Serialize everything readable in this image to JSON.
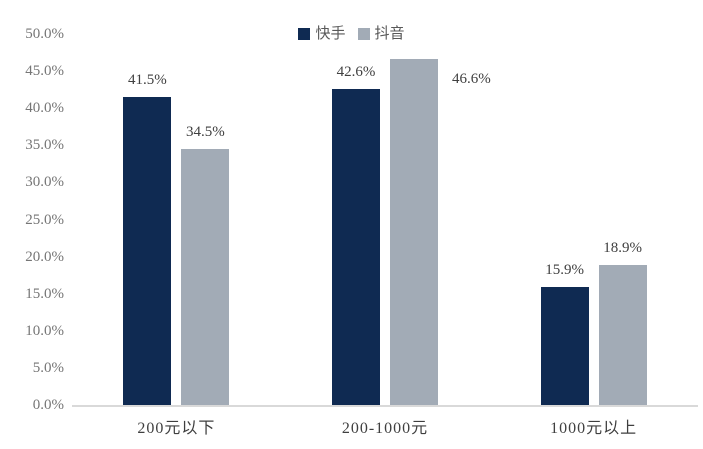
{
  "chart_data": {
    "type": "bar",
    "title": "",
    "categories": [
      "200元以下",
      "200-1000元",
      "1000元以上"
    ],
    "series": [
      {
        "name": "快手",
        "color": "#0f2a52",
        "values": [
          41.5,
          42.6,
          15.9
        ],
        "data_labels": [
          "41.5%",
          "42.6%",
          "15.9%"
        ],
        "label_placements": [
          "above",
          "above",
          "above"
        ]
      },
      {
        "name": "抖音",
        "color": "#a2abb6",
        "values": [
          34.5,
          46.6,
          18.9
        ],
        "data_labels": [
          "34.5%",
          "46.6%",
          "18.9%"
        ],
        "label_placements": [
          "above",
          "right",
          "above"
        ]
      }
    ],
    "ylim": [
      0,
      50
    ],
    "ytick_step": 5,
    "ytick_labels": [
      "0.0%",
      "5.0%",
      "10.0%",
      "15.0%",
      "20.0%",
      "25.0%",
      "30.0%",
      "35.0%",
      "40.0%",
      "45.0%",
      "50.0%"
    ],
    "legend": {
      "position": "top-center",
      "entries": [
        "快手",
        "抖音"
      ]
    },
    "grid": false,
    "colors": {
      "axis_line": "#d9d9d9",
      "tick_label": "#767676",
      "data_label": "#404040",
      "category_label": "#3f3f3f",
      "legend_label": "#595959",
      "background": "#ffffff"
    }
  }
}
